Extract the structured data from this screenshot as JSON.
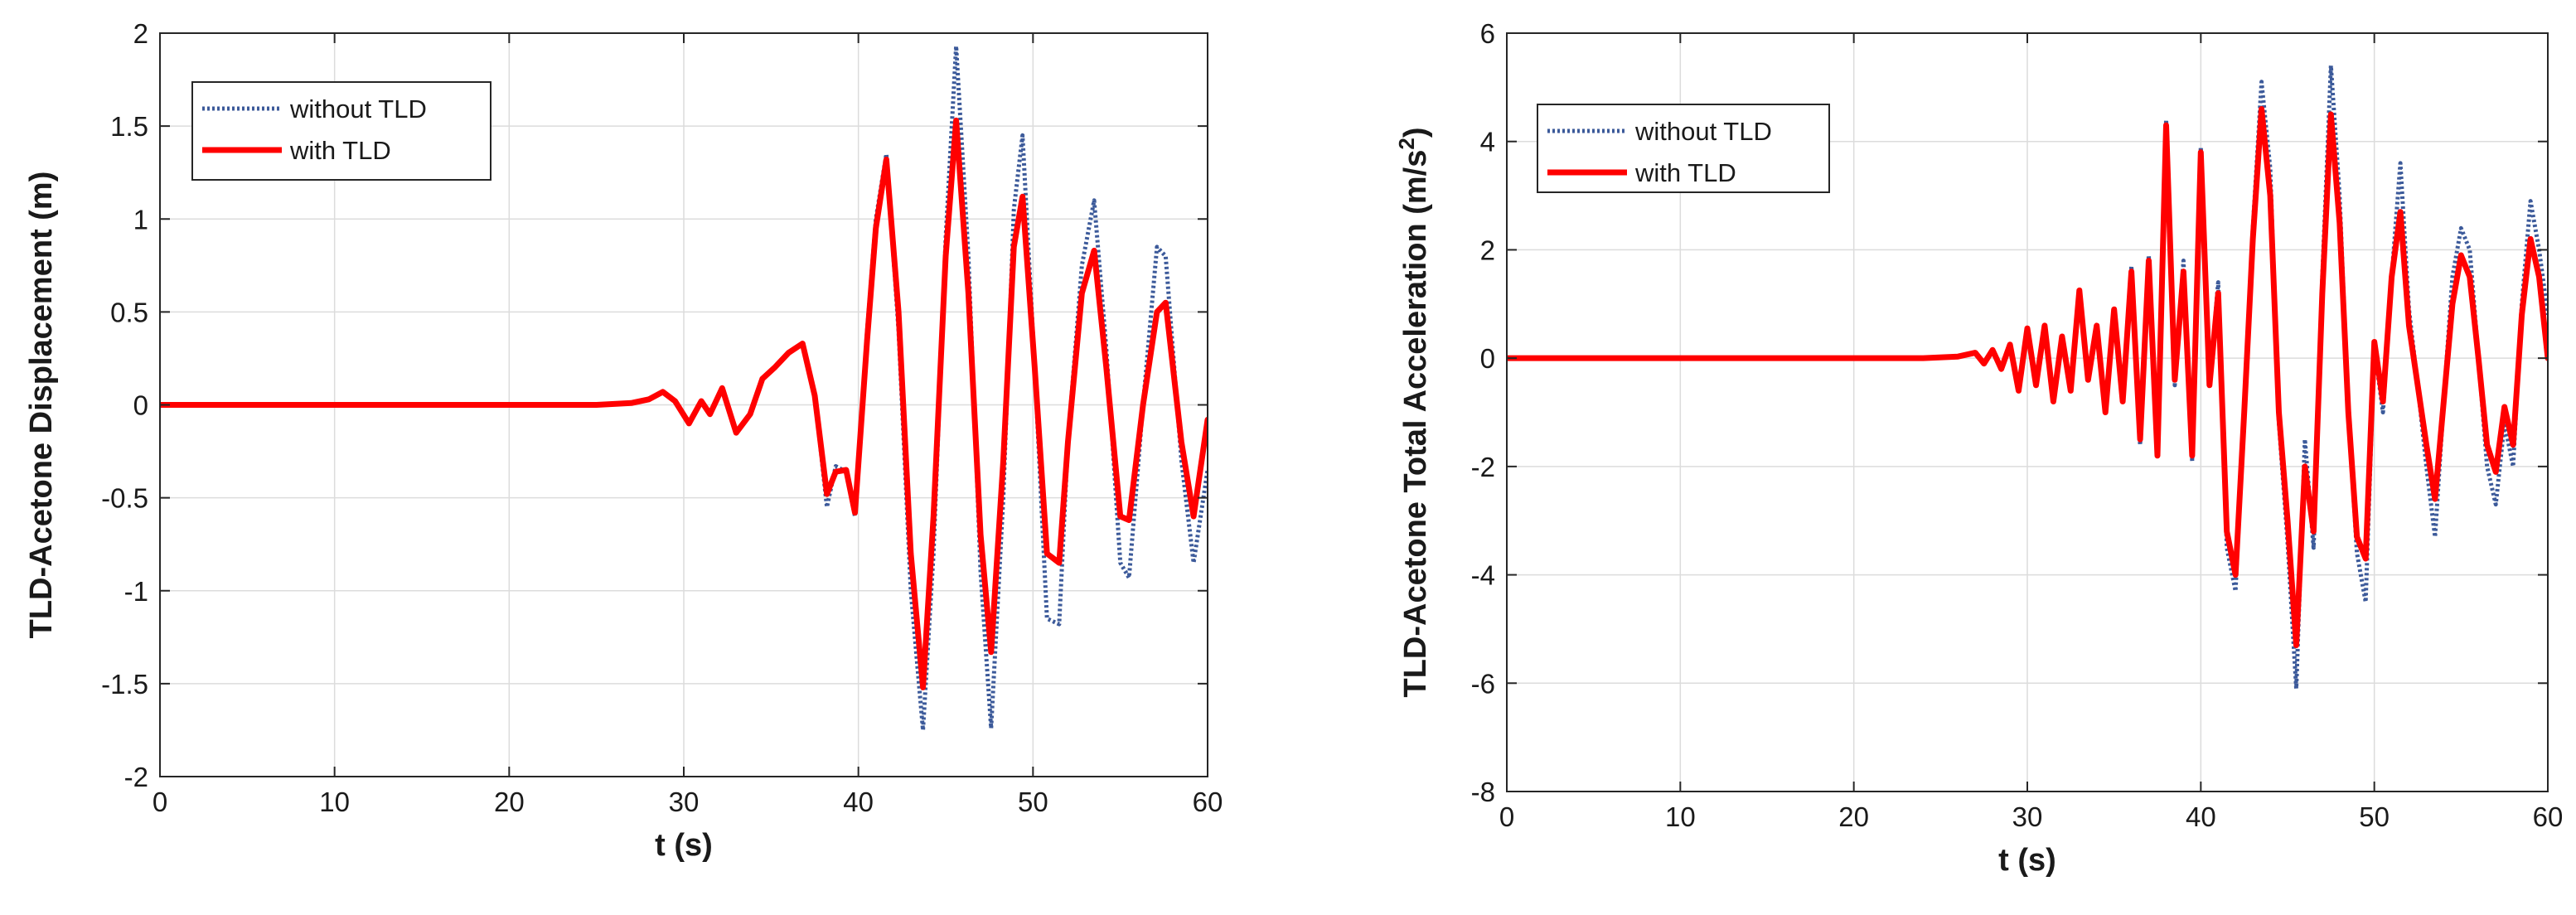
{
  "colors": {
    "without": "#3c5a9a",
    "with": "#ff0000",
    "grid": "#dcdcdc",
    "axis": "#262626"
  },
  "chart_data": [
    {
      "type": "line",
      "xlabel": "t (s)",
      "ylabel": "TLD-Acetone Displacement (m)",
      "xlim": [
        0,
        60
      ],
      "ylim": [
        -2,
        2
      ],
      "xticks": [
        "0",
        "10",
        "20",
        "30",
        "40",
        "50",
        "60"
      ],
      "yticks": [
        "-2",
        "-1.5",
        "-1",
        "-0.5",
        "0",
        "0.5",
        "1",
        "1.5",
        "2"
      ],
      "grid": true,
      "legend_position": "top-left",
      "series": [
        {
          "name": "without TLD",
          "style": "dotted",
          "x": [
            0,
            23,
            25,
            27,
            28,
            28.8,
            29.5,
            30.3,
            31,
            31.5,
            32.2,
            33,
            33.8,
            34.5,
            35.2,
            36,
            36.8,
            37.5,
            38.2,
            38.7,
            39.3,
            39.8,
            40.5,
            41,
            41.6,
            42.3,
            43,
            43.7,
            44.3,
            45,
            45.6,
            46.3,
            47,
            47.6,
            48.3,
            48.9,
            49.4,
            50.1,
            50.8,
            51.5,
            52,
            52.8,
            53.5,
            54.2,
            55,
            55.5,
            56.3,
            57.1,
            57.6,
            58.5,
            59.2,
            60
          ],
          "y": [
            0,
            0,
            0,
            0.01,
            0.03,
            0.07,
            0.02,
            -0.1,
            0.02,
            -0.05,
            0.09,
            -0.15,
            -0.05,
            0.14,
            0.2,
            0.28,
            0.33,
            0.05,
            -0.55,
            -0.33,
            -0.36,
            -0.6,
            0.4,
            1.0,
            1.35,
            0.4,
            -1.0,
            -1.75,
            -0.8,
            0.9,
            1.93,
            0.8,
            -0.9,
            -1.74,
            -0.5,
            1.05,
            1.45,
            0.2,
            -1.15,
            -1.18,
            -0.2,
            0.75,
            1.1,
            0.3,
            -0.85,
            -0.93,
            0.0,
            0.85,
            0.8,
            -0.3,
            -0.85,
            -0.35
          ]
        },
        {
          "name": "with TLD",
          "style": "solid",
          "x": [
            0,
            23,
            25,
            27,
            28,
            28.8,
            29.5,
            30.3,
            31,
            31.5,
            32.2,
            33,
            33.8,
            34.5,
            35.2,
            36,
            36.8,
            37.5,
            38.2,
            38.7,
            39.3,
            39.8,
            40.5,
            41,
            41.6,
            42.3,
            43,
            43.7,
            44.3,
            45,
            45.6,
            46.3,
            47,
            47.6,
            48.3,
            48.9,
            49.4,
            50.1,
            50.8,
            51.5,
            52,
            52.8,
            53.5,
            54.2,
            55,
            55.5,
            56.3,
            57.1,
            57.6,
            58.5,
            59.2,
            60
          ],
          "y": [
            0,
            0,
            0,
            0.01,
            0.03,
            0.07,
            0.02,
            -0.1,
            0.02,
            -0.05,
            0.09,
            -0.15,
            -0.05,
            0.14,
            0.2,
            0.28,
            0.33,
            0.05,
            -0.48,
            -0.36,
            -0.35,
            -0.58,
            0.35,
            0.95,
            1.32,
            0.5,
            -0.8,
            -1.52,
            -0.6,
            0.8,
            1.53,
            0.6,
            -0.7,
            -1.33,
            -0.3,
            0.85,
            1.12,
            0.2,
            -0.8,
            -0.85,
            -0.2,
            0.6,
            0.83,
            0.2,
            -0.6,
            -0.62,
            0.0,
            0.5,
            0.55,
            -0.2,
            -0.6,
            -0.08
          ]
        }
      ]
    },
    {
      "type": "line",
      "xlabel": "t (s)",
      "ylabel": "TLD-Acetone Total Acceleration (m/s",
      "ylabel_sup": "2",
      "ylabel_close": ")",
      "xlim": [
        0,
        60
      ],
      "ylim": [
        -8,
        6
      ],
      "xticks": [
        "0",
        "10",
        "20",
        "30",
        "40",
        "50",
        "60"
      ],
      "yticks": [
        "-8",
        "-6",
        "-4",
        "-2",
        "0",
        "2",
        "4",
        "6"
      ],
      "grid": true,
      "legend_position": "top-left",
      "series": [
        {
          "name": "without TLD",
          "style": "dotted",
          "x": [
            0,
            24,
            26,
            27,
            27.5,
            28,
            28.5,
            29,
            29.5,
            30,
            30.5,
            31,
            31.5,
            32,
            32.5,
            33,
            33.5,
            34,
            34.5,
            35,
            35.5,
            36,
            36.5,
            37,
            37.5,
            38,
            38.5,
            39,
            39.5,
            40,
            40.5,
            41,
            41.5,
            42,
            42.5,
            43,
            43.5,
            44,
            44.5,
            45,
            45.5,
            46,
            46.5,
            47,
            47.5,
            48,
            48.5,
            49,
            49.5,
            50,
            50.5,
            51,
            51.5,
            52,
            52.5,
            53,
            53.5,
            54,
            54.5,
            55,
            55.5,
            56,
            56.5,
            57,
            57.5,
            58,
            58.5,
            59,
            59.5,
            60
          ],
          "y": [
            0,
            0,
            0.03,
            0.1,
            -0.1,
            0.15,
            -0.2,
            0.25,
            -0.6,
            0.55,
            -0.5,
            0.6,
            -0.8,
            0.4,
            -0.6,
            1.3,
            -0.4,
            0.6,
            -1.0,
            0.9,
            -0.8,
            1.7,
            -1.6,
            1.9,
            -1.8,
            4.4,
            -0.5,
            1.8,
            -1.9,
            3.9,
            -0.5,
            1.4,
            -3.5,
            -4.3,
            -0.8,
            2.4,
            5.1,
            3.5,
            -1.2,
            -3.4,
            -6.1,
            -1.5,
            -3.5,
            1.5,
            5.4,
            3.0,
            -1.0,
            -3.6,
            -4.5,
            0.2,
            -1.0,
            1.5,
            3.6,
            0.9,
            -0.5,
            -2.0,
            -3.3,
            -0.8,
            1.5,
            2.4,
            2.0,
            0.0,
            -2.0,
            -2.7,
            -1.2,
            -2.0,
            1.0,
            2.9,
            2.0,
            0.8
          ]
        },
        {
          "name": "with TLD",
          "style": "solid",
          "x": [
            0,
            24,
            26,
            27,
            27.5,
            28,
            28.5,
            29,
            29.5,
            30,
            30.5,
            31,
            31.5,
            32,
            32.5,
            33,
            33.5,
            34,
            34.5,
            35,
            35.5,
            36,
            36.5,
            37,
            37.5,
            38,
            38.5,
            39,
            39.5,
            40,
            40.5,
            41,
            41.5,
            42,
            42.5,
            43,
            43.5,
            44,
            44.5,
            45,
            45.5,
            46,
            46.5,
            47,
            47.5,
            48,
            48.5,
            49,
            49.5,
            50,
            50.5,
            51,
            51.5,
            52,
            52.5,
            53,
            53.5,
            54,
            54.5,
            55,
            55.5,
            56,
            56.5,
            57,
            57.5,
            58,
            58.5,
            59,
            59.5,
            60
          ],
          "y": [
            0,
            0,
            0.03,
            0.1,
            -0.1,
            0.15,
            -0.2,
            0.25,
            -0.6,
            0.55,
            -0.5,
            0.6,
            -0.8,
            0.4,
            -0.6,
            1.25,
            -0.4,
            0.6,
            -1.0,
            0.9,
            -0.8,
            1.6,
            -1.5,
            1.8,
            -1.8,
            4.3,
            -0.4,
            1.6,
            -1.8,
            3.8,
            -0.5,
            1.2,
            -3.2,
            -4.0,
            -1.0,
            2.2,
            4.6,
            3.0,
            -1.0,
            -3.0,
            -5.3,
            -2.0,
            -3.2,
            1.2,
            4.5,
            2.5,
            -1.0,
            -3.3,
            -3.7,
            0.3,
            -0.8,
            1.5,
            2.7,
            0.6,
            -0.5,
            -1.6,
            -2.6,
            -0.8,
            1.0,
            1.9,
            1.5,
            0.0,
            -1.6,
            -2.1,
            -0.9,
            -1.6,
            0.8,
            2.2,
            1.5,
            0.0
          ]
        }
      ]
    }
  ]
}
